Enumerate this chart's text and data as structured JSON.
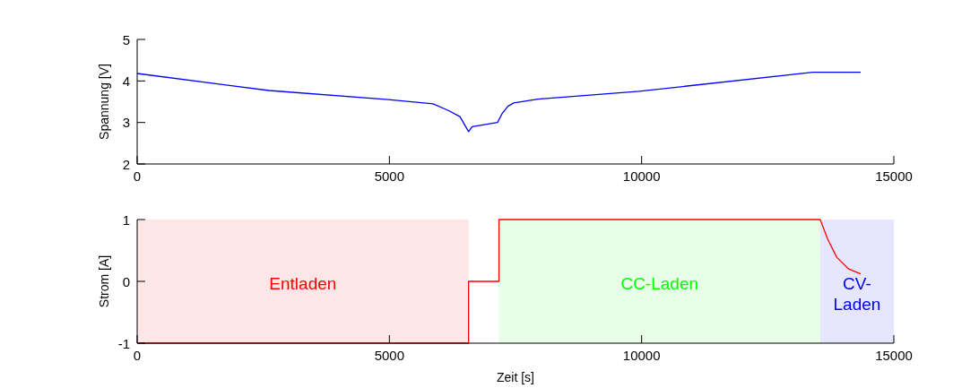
{
  "chart_data": [
    {
      "type": "line",
      "ylabel": "Spannung [V]",
      "xlim": [
        0,
        15000
      ],
      "xticks": [
        0,
        5000,
        10000,
        15000
      ],
      "ylim": [
        2,
        5
      ],
      "yticks": [
        2,
        3,
        4,
        5
      ],
      "series": [
        {
          "color": "#0000ff",
          "x": [
            0,
            2612,
            4977,
            5865,
            6167,
            6398,
            6570,
            6641,
            7144,
            7233,
            7350,
            7464,
            7944,
            9952,
            13394,
            14342
          ],
          "values": [
            4.18,
            3.77,
            3.55,
            3.45,
            3.29,
            3.14,
            2.78,
            2.9,
            3.0,
            3.21,
            3.39,
            3.47,
            3.56,
            3.75,
            4.21,
            4.21
          ]
        }
      ]
    },
    {
      "type": "line",
      "xlabel": "Zeit [s]",
      "ylabel": "Strom [A]",
      "xlim": [
        0,
        15000
      ],
      "xticks": [
        0,
        5000,
        10000,
        15000
      ],
      "ylim": [
        -1,
        1
      ],
      "yticks": [
        -1,
        0,
        1
      ],
      "series": [
        {
          "color": "#ff0000",
          "x": [
            0,
            6570,
            6570,
            7173,
            7173,
            13540,
            13690,
            13868,
            14105,
            14342
          ],
          "values": [
            -1,
            -1,
            0,
            0,
            1,
            1,
            0.68,
            0.39,
            0.2,
            0.12
          ]
        }
      ],
      "bands": [
        {
          "axis": "x",
          "from": 0,
          "to": 6570,
          "label": "Entladen",
          "color": "#ffe6e6"
        },
        {
          "axis": "x",
          "from": 7173,
          "to": 13540,
          "label": "CC-Laden",
          "color": "#e6ffe6"
        },
        {
          "axis": "x",
          "from": 13540,
          "to": 15000,
          "label": "CV-Laden",
          "color": "#e6e6ff"
        }
      ]
    }
  ]
}
